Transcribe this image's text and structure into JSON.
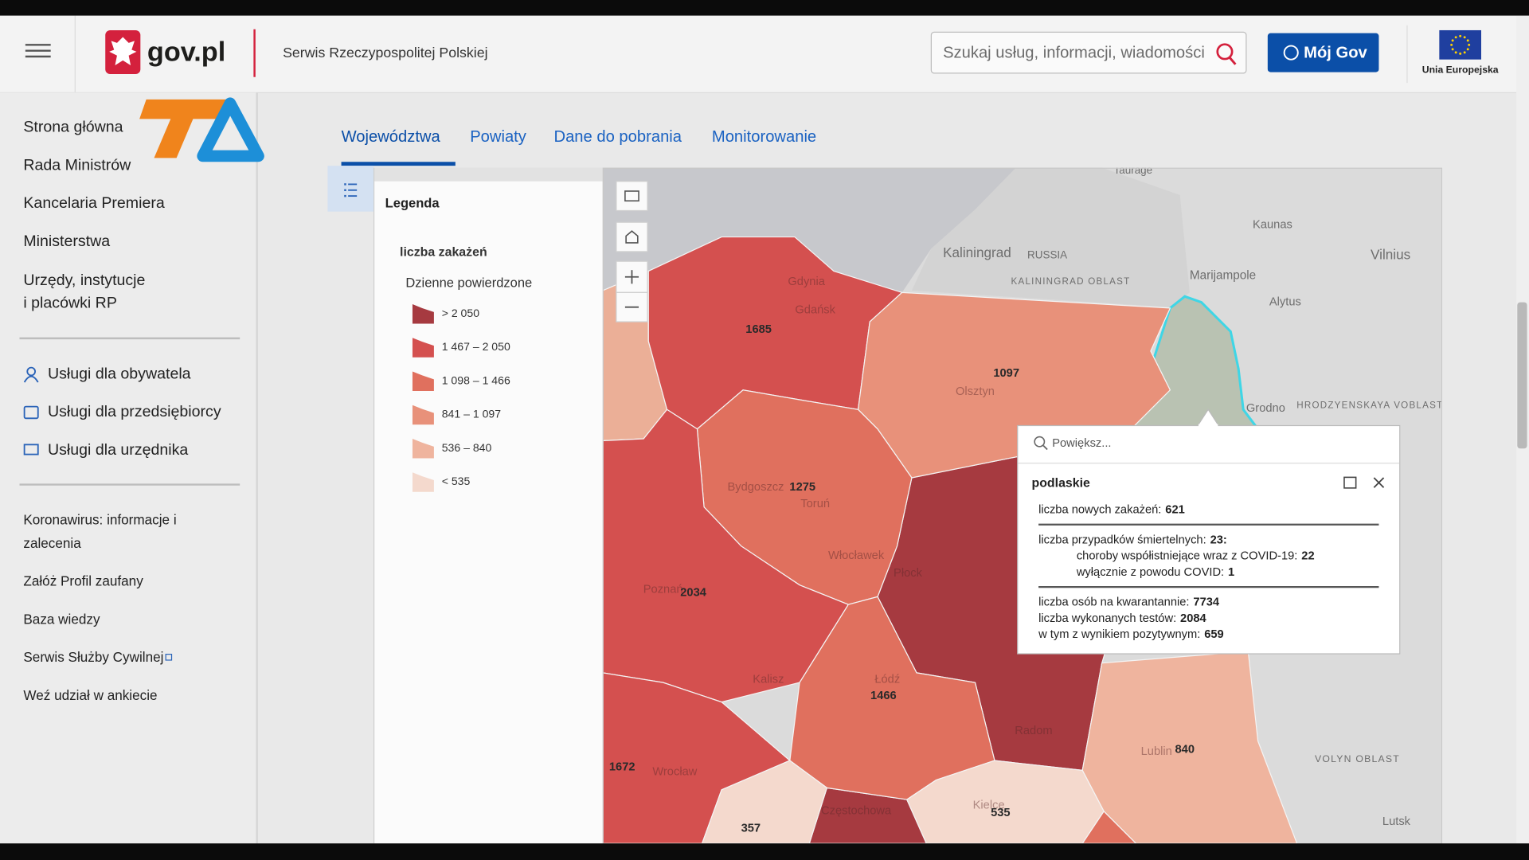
{
  "header": {
    "logo": "gov.pl",
    "service": "Serwis Rzeczypospolitej Polskiej",
    "search_placeholder": "Szukaj usług, informacji, wiadomości",
    "login": "Mój Gov",
    "eu": "Unia Europejska"
  },
  "sidebar": {
    "nav": [
      [
        "Strona główna"
      ],
      [
        "Rada Ministrów"
      ],
      [
        "Kancelaria Premiera"
      ],
      [
        "Ministerstwa"
      ],
      [
        "Urzędy, instytucje",
        "i placówki RP"
      ]
    ],
    "services": [
      "Usługi dla obywatela",
      "Usługi dla przedsiębiorcy",
      "Usługi dla urzędnika"
    ],
    "links": [
      [
        "Koronawirus: informacje i",
        "zalecenia"
      ],
      [
        "Załóż Profil zaufany"
      ],
      [
        "Baza wiedzy"
      ],
      [
        "Serwis Służby Cywilnej"
      ],
      [
        "Weź udział w ankiecie"
      ]
    ]
  },
  "tabs": [
    "Województwa",
    "Powiaty",
    "Dane do pobrania",
    "Monitorowanie"
  ],
  "legend": {
    "title": "Legenda",
    "layer": "liczba zakażeń",
    "subtitle": "Dzienne powierdzone",
    "classes": [
      {
        "label": "> 2 050",
        "color": "#a63a40"
      },
      {
        "label": "1 467 – 2 050",
        "color": "#d4504f"
      },
      {
        "label": "1 098 – 1 466",
        "color": "#e0705e"
      },
      {
        "label": "841 – 1 097",
        "color": "#e8917a"
      },
      {
        "label": "536 – 840",
        "color": "#efb49e"
      },
      {
        "label": "< 535",
        "color": "#f4d9cd"
      }
    ]
  },
  "map": {
    "regions": [
      {
        "label": "1685",
        "color": "#d4504f"
      },
      {
        "label": "1097",
        "color": "#e8917a"
      },
      {
        "label": "1275",
        "color": "#e0705e"
      },
      {
        "label": "2034",
        "color": "#d4504f"
      },
      {
        "label": "1466",
        "color": "#e0705e"
      },
      {
        "label": "840",
        "color": "#efb49e"
      },
      {
        "label": "1672",
        "color": "#d4504f"
      },
      {
        "label": "357",
        "color": "#f4d9cd"
      },
      {
        "label": "535",
        "color": "#f4d9cd"
      }
    ],
    "places": [
      "Taurage",
      "Kaliningrad",
      "RUSSIA",
      "KALININGRAD OBLAST",
      "Kaunas",
      "Vilnius",
      "Marijampole",
      "Alytus",
      "Grodno",
      "HRODZYENSKAYA VOBLASTS'",
      "VOLYN OBLAST",
      "Lutsk",
      "Gdynia",
      "Gdańsk",
      "Olsztyn",
      "Bydgoszcz",
      "Toruń",
      "Włocławek",
      "Płock",
      "Poznań",
      "Kalisz",
      "Łódź",
      "Radom",
      "Lublin",
      "Kielce",
      "Wrocław",
      "Częstochowa"
    ]
  },
  "popup": {
    "search": "Powiększ...",
    "title": "podlaskie",
    "sections": [
      {
        "rows": [
          {
            "label": "liczba nowych zakażeń:",
            "value": "621"
          }
        ]
      },
      {
        "rows": [
          {
            "label": "liczba przypadków śmiertelnych:",
            "value": "23:"
          }
        ],
        "sub": [
          {
            "label": "choroby współistniejące wraz z COVID-19:",
            "value": "22"
          },
          {
            "label": "wyłącznie z powodu COVID:",
            "value": "1"
          }
        ]
      },
      {
        "rows": [
          {
            "label": "liczba osób na kwarantannie:",
            "value": "7734"
          },
          {
            "label": "liczba wykonanych testów:",
            "value": "2084"
          },
          {
            "label": "w tym z wynikiem pozytywnym:",
            "value": "659"
          }
        ]
      }
    ]
  }
}
